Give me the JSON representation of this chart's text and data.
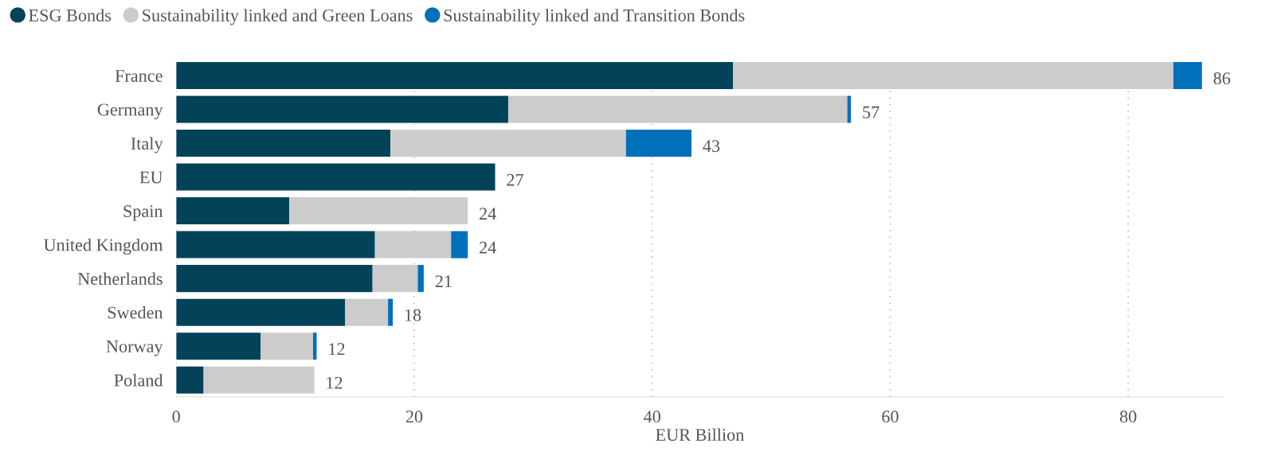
{
  "chart_data": {
    "type": "bar",
    "orientation": "horizontal",
    "stacked": true,
    "categories": [
      "France",
      "Germany",
      "Italy",
      "EU",
      "Spain",
      "United Kingdom",
      "Netherlands",
      "Sweden",
      "Norway",
      "Poland"
    ],
    "series": [
      {
        "name": "ESG Bonds",
        "color": "#02435a",
        "values": [
          46.8,
          27.9,
          18.0,
          26.8,
          9.5,
          16.7,
          16.5,
          14.2,
          7.1,
          2.3
        ]
      },
      {
        "name": "Sustainability linked and Green Loans",
        "color": "#cccccc",
        "values": [
          37.0,
          28.5,
          19.8,
          null,
          15.0,
          6.4,
          3.8,
          3.6,
          4.4,
          9.3
        ]
      },
      {
        "name": "Sustainability linked and Transition Bonds",
        "color": "#0070bb",
        "values": [
          2.4,
          0.3,
          5.5,
          null,
          null,
          1.4,
          0.5,
          0.4,
          0.3,
          null
        ]
      }
    ],
    "totals": [
      "86",
      "57",
      "43",
      "27",
      "24",
      "24",
      "21",
      "18",
      "12",
      "12"
    ],
    "xlabel": "EUR Billion",
    "xlim": [
      0,
      88
    ],
    "xticks": [
      0,
      20,
      40,
      60,
      80
    ],
    "grid": "x",
    "legend": "top left"
  }
}
